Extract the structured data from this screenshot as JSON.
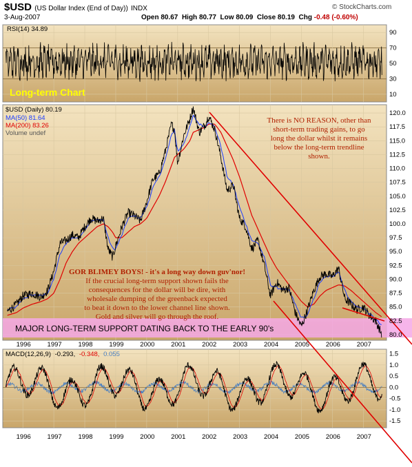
{
  "header": {
    "symbol": "$USD",
    "name": "(US Dollar Index (End of Day))",
    "exchange": "INDX",
    "date": "3-Aug-2007",
    "open_label": "Open",
    "open": "80.67",
    "high_label": "High",
    "high": "80.77",
    "low_label": "Low",
    "low": "80.09",
    "close_label": "Close",
    "close": "80.19",
    "chg_label": "Chg",
    "chg": "-0.48 (-0.60%)",
    "brand": "© StockCharts.com"
  },
  "chart_data": [
    {
      "type": "line",
      "panel": "RSI",
      "label": "RSI(14) 34.89",
      "ylim": [
        0,
        100
      ],
      "yticks": [
        10,
        30,
        50,
        70,
        90
      ],
      "reference_lines": [
        30,
        70
      ],
      "series": [
        {
          "name": "RSI(14)",
          "last": 34.89
        }
      ]
    },
    {
      "type": "line",
      "panel": "price",
      "annotation_title": "Long-term Chart",
      "label": "$USD (Daily) 80.19",
      "legend": [
        {
          "name": "MA(50) 81.64",
          "color": "#1a3cff"
        },
        {
          "name": "MA(200) 83.26",
          "color": "#e00000"
        },
        {
          "name": "Volume undef",
          "color": "#555555"
        }
      ],
      "ylim": [
        79.0,
        121.5
      ],
      "yticks": [
        80.0,
        82.5,
        85.0,
        87.5,
        90.0,
        92.5,
        95.0,
        97.5,
        100.0,
        102.5,
        105.0,
        107.5,
        110.0,
        112.5,
        115.0,
        117.5,
        120.0
      ],
      "x_tick_labels": [
        "1996",
        "1997",
        "1998",
        "1999",
        "2000",
        "2001",
        "2002",
        "2003",
        "2004",
        "2005",
        "2006",
        "2007"
      ],
      "x": [
        1995.5,
        1995.8,
        1996.0,
        1996.3,
        1996.6,
        1996.8,
        1997.0,
        1997.2,
        1997.4,
        1997.6,
        1997.8,
        1998.0,
        1998.2,
        1998.4,
        1998.6,
        1998.75,
        1998.9,
        1999.0,
        1999.2,
        1999.4,
        1999.6,
        1999.8,
        2000.0,
        2000.2,
        2000.4,
        2000.6,
        2000.8,
        2000.9,
        2001.0,
        2001.2,
        2001.4,
        2001.5,
        2001.7,
        2001.9,
        2002.0,
        2002.2,
        2002.4,
        2002.6,
        2002.8,
        2003.0,
        2003.2,
        2003.4,
        2003.6,
        2003.8,
        2004.0,
        2004.2,
        2004.4,
        2004.6,
        2004.8,
        2005.0,
        2005.2,
        2005.4,
        2005.6,
        2005.8,
        2006.0,
        2006.2,
        2006.4,
        2006.6,
        2006.8,
        2007.0,
        2007.2,
        2007.4,
        2007.59
      ],
      "series": [
        {
          "name": "$USD",
          "values": [
            84.2,
            85.5,
            87.0,
            87.5,
            86.8,
            88.0,
            91.5,
            96.5,
            97.0,
            98.0,
            97.5,
            99.5,
            101.0,
            100.5,
            101.0,
            95.5,
            94.0,
            96.0,
            99.5,
            102.0,
            101.5,
            100.5,
            104.0,
            108.0,
            109.0,
            113.0,
            118.0,
            117.0,
            111.0,
            116.0,
            119.0,
            121.0,
            116.5,
            118.0,
            119.5,
            117.0,
            112.0,
            106.0,
            107.0,
            101.0,
            99.5,
            95.5,
            97.0,
            92.5,
            87.0,
            89.5,
            88.0,
            88.5,
            84.0,
            81.5,
            84.5,
            88.0,
            90.5,
            91.0,
            90.5,
            92.0,
            86.5,
            85.5,
            84.5,
            85.0,
            83.5,
            82.5,
            80.19
          ]
        },
        {
          "name": "MA(50)",
          "values": [
            84.5,
            85.0,
            86.5,
            87.2,
            87.0,
            87.5,
            90.0,
            94.5,
            96.5,
            97.5,
            97.5,
            99.0,
            100.5,
            100.7,
            100.8,
            97.5,
            95.5,
            95.5,
            98.0,
            101.0,
            101.5,
            101.0,
            103.0,
            106.5,
            108.5,
            111.5,
            116.0,
            117.0,
            113.0,
            114.5,
            117.5,
            119.5,
            118.0,
            117.5,
            118.5,
            117.5,
            114.0,
            108.5,
            107.0,
            103.0,
            100.0,
            97.0,
            96.5,
            94.0,
            89.0,
            88.5,
            88.2,
            88.0,
            85.5,
            83.0,
            83.5,
            86.5,
            89.5,
            90.5,
            90.5,
            91.5,
            88.0,
            86.0,
            85.0,
            84.8,
            83.8,
            82.8,
            81.64
          ]
        },
        {
          "name": "MA(200)",
          "values": [
            83.5,
            84.0,
            84.8,
            85.5,
            86.0,
            86.5,
            87.5,
            90.0,
            93.0,
            95.0,
            96.5,
            97.5,
            98.5,
            99.5,
            100.0,
            99.5,
            98.5,
            97.5,
            97.5,
            98.5,
            99.5,
            100.0,
            101.0,
            103.0,
            105.0,
            107.5,
            110.5,
            112.0,
            112.5,
            113.5,
            115.0,
            116.5,
            117.0,
            117.5,
            118.0,
            118.0,
            116.5,
            114.0,
            111.5,
            108.5,
            105.0,
            101.5,
            99.0,
            96.5,
            94.0,
            92.0,
            90.5,
            89.0,
            87.5,
            86.0,
            85.0,
            85.5,
            87.0,
            88.0,
            88.5,
            89.0,
            88.8,
            88.0,
            87.0,
            86.0,
            85.0,
            84.0,
            83.26
          ]
        }
      ],
      "annotations": [
        "There is NO REASON, other than short-term trading gains, to go long the dollar whilst it remains below the long-term trendline shown.",
        "GOR BLIMEY BOYS! - it's a long way down guv'nor! If the crucial long-term support shown fails the consequences for the dollar will be dire, with wholesale dumping of the greenback expected to beat it down to the lower channel line shown. Gold and silver will go through the roof.",
        "MAJOR LONG-TERM SUPPORT DATING BACK TO THE EARLY 90's"
      ]
    },
    {
      "type": "line",
      "panel": "MACD",
      "label_prefix": "MACD(12,26,9)",
      "values_text": [
        "-0.293,",
        "-0.348,",
        "0.055"
      ],
      "ylim": [
        -1.8,
        1.7
      ],
      "yticks": [
        -1.5,
        -1.0,
        -0.5,
        0.0,
        0.5,
        1.0,
        1.5
      ],
      "x_tick_labels": [
        "1996",
        "1997",
        "1998",
        "1999",
        "2000",
        "2001",
        "2002",
        "2003",
        "2004",
        "2005",
        "2006",
        "2007"
      ],
      "series": [
        {
          "name": "MACD",
          "last": -0.293,
          "color": "#000000"
        },
        {
          "name": "Signal",
          "last": -0.348,
          "color": "#e00000"
        },
        {
          "name": "Histogram",
          "last": 0.055,
          "color": "#4a7fc0"
        }
      ]
    }
  ],
  "text": {
    "long_term_title": "Long-term Chart",
    "price_label": "$USD (Daily) 80.19",
    "ma50_label": "MA(50) 81.64",
    "ma200_label": "MA(200) 83.26",
    "vol_label": "Volume undef",
    "rsi_label": "RSI(14) 34.89",
    "macd_label": "MACD(12,26,9)",
    "macd_v1": "-0.293,",
    "macd_v2": "-0.348,",
    "macd_v3": "0.055",
    "ann1_l1": "There is NO REASON, other than",
    "ann1_l2": "short-term trading gains, to go",
    "ann1_l3": "long the dollar whilst it remains",
    "ann1_l4": "below the long-term trendline",
    "ann1_l5": "shown.",
    "ann2_l1": "GOR BLIMEY BOYS! - it's a long way down guv'nor!",
    "ann2_l2": "If the crucial long-term support shown fails the",
    "ann2_l3": "consequences for the dollar will be dire, with",
    "ann2_l4": "wholesale dumping of the greenback expected",
    "ann2_l5": "to beat it down to the lower channel line shown.",
    "ann2_l6": "Gold and silver will go through the roof.",
    "support_text": "MAJOR LONG-TERM SUPPORT DATING BACK TO THE EARLY 90's"
  },
  "colors": {
    "panel_top": "#f2dfb6",
    "panel_bottom": "#c9a868",
    "support_band": "#f4a8e6",
    "trendline": "#e00000",
    "annotation_text": "#b02000",
    "ma50": "#1a3cff",
    "ma200": "#e00000"
  }
}
